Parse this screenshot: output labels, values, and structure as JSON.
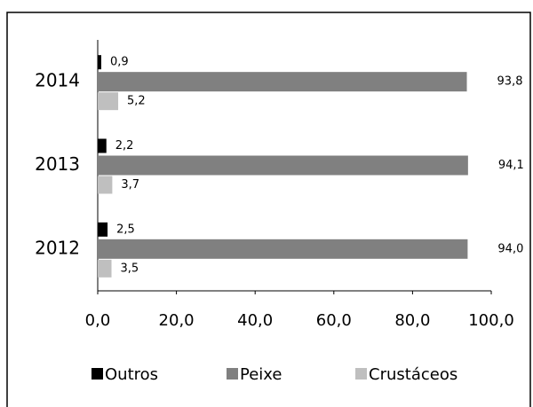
{
  "chart_data": {
    "type": "bar",
    "orientation": "horizontal",
    "categories": [
      "2014",
      "2013",
      "2012"
    ],
    "series": [
      {
        "name": "Outros",
        "color": "#000000",
        "values": [
          0.9,
          2.2,
          2.5
        ],
        "value_labels": [
          "0,9",
          "2,2",
          "2,5"
        ]
      },
      {
        "name": "Peixe",
        "color": "#808080",
        "values": [
          93.8,
          94.1,
          94.0
        ],
        "value_labels": [
          "93,8",
          "94,1",
          "94,0"
        ]
      },
      {
        "name": "Crustáceos",
        "color": "#bfbfbf",
        "values": [
          5.2,
          3.7,
          3.5
        ],
        "value_labels": [
          "5,2",
          "3,7",
          "3,5"
        ]
      }
    ],
    "xlim": [
      0,
      100
    ],
    "xticks": [
      {
        "value": 0,
        "label": "0,0"
      },
      {
        "value": 20,
        "label": "20,0"
      },
      {
        "value": 40,
        "label": "40,0"
      },
      {
        "value": 60,
        "label": "60,0"
      },
      {
        "value": 80,
        "label": "80,0"
      },
      {
        "value": 100,
        "label": "100,0"
      }
    ],
    "legend": "bottom"
  }
}
